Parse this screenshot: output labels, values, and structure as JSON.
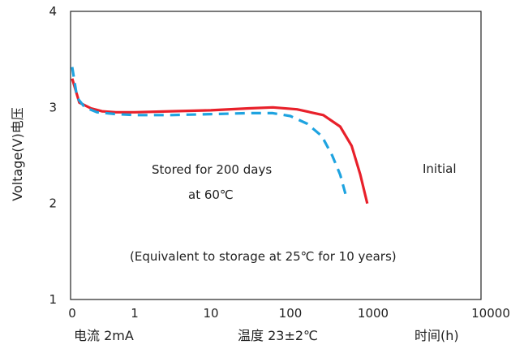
{
  "chart_data": {
    "type": "line",
    "x_scale": "log",
    "ylabel": "Voltage(V)电压",
    "ylim": [
      1,
      4
    ],
    "xlim": [
      0.1,
      10000
    ],
    "y_ticks": [
      "1",
      "2",
      "3",
      "4"
    ],
    "x_ticks": [
      {
        "value": 0.1,
        "label": "0"
      },
      {
        "value": 1,
        "label": "1"
      },
      {
        "value": 10,
        "label": "10"
      },
      {
        "value": 100,
        "label": "100"
      },
      {
        "value": 1000,
        "label": "1000"
      },
      {
        "value": 10000,
        "label": "10000"
      }
    ],
    "grid": false,
    "series": [
      {
        "name": "Initial",
        "style": "solid",
        "color": "#e8202a",
        "points": [
          [
            0.1,
            3.3
          ],
          [
            0.13,
            3.05
          ],
          [
            0.2,
            2.99
          ],
          [
            0.3,
            2.96
          ],
          [
            0.5,
            2.95
          ],
          [
            1,
            2.95
          ],
          [
            3,
            2.96
          ],
          [
            10,
            2.97
          ],
          [
            30,
            2.99
          ],
          [
            60,
            3.0
          ],
          [
            120,
            2.98
          ],
          [
            250,
            2.92
          ],
          [
            400,
            2.8
          ],
          [
            550,
            2.6
          ],
          [
            700,
            2.3
          ],
          [
            850,
            2.0
          ]
        ]
      },
      {
        "name": "Stored for 200 days at 60℃",
        "style": "dashed",
        "color": "#1ea3e0",
        "points": [
          [
            0.1,
            3.42
          ],
          [
            0.12,
            3.1
          ],
          [
            0.16,
            3.0
          ],
          [
            0.25,
            2.95
          ],
          [
            0.5,
            2.93
          ],
          [
            1,
            2.92
          ],
          [
            3,
            2.92
          ],
          [
            10,
            2.93
          ],
          [
            30,
            2.94
          ],
          [
            60,
            2.94
          ],
          [
            100,
            2.91
          ],
          [
            160,
            2.83
          ],
          [
            240,
            2.7
          ],
          [
            320,
            2.5
          ],
          [
            400,
            2.3
          ],
          [
            480,
            2.05
          ]
        ]
      }
    ],
    "annotations": {
      "stored_line1": "Stored for 200 days",
      "stored_line2": "at 60℃",
      "initial": "Initial",
      "equivalent": "(Equivalent to storage at 25℃ for 10 years)"
    },
    "footer": {
      "current": "电流  2mA",
      "temperature": "温度  23±2℃",
      "time": "时间(h)"
    }
  }
}
